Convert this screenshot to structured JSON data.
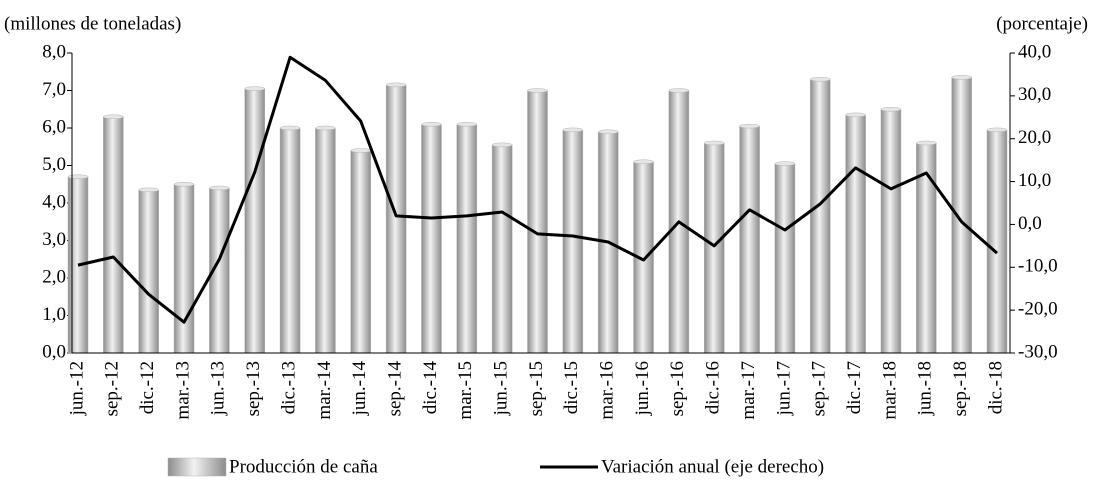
{
  "chart_data": {
    "type": "bar",
    "y_label": "(millones  de toneladas)",
    "y2_label": "(porcentaje)",
    "categories": [
      "jun.-12",
      "sep.-12",
      "dic.-12",
      "mar.-13",
      "jun.-13",
      "sep.-13",
      "dic.-13",
      "mar.-14",
      "jun.-14",
      "sep.-14",
      "dic.-14",
      "mar.-15",
      "jun.-15",
      "sep.-15",
      "dic.-15",
      "mar.-16",
      "jun.-16",
      "sep.-16",
      "dic.-16",
      "mar.-17",
      "jun.-17",
      "sep.-17",
      "dic.-17",
      "mar.-18",
      "jun.-18",
      "sep.-18",
      "dic.-18"
    ],
    "series": [
      {
        "name": "Producción de caña",
        "type": "bar",
        "color": "#b4b4b4",
        "values": [
          4.7,
          6.3,
          4.35,
          4.5,
          4.4,
          7.05,
          6.0,
          6.0,
          5.4,
          7.15,
          6.1,
          6.1,
          5.55,
          7.0,
          5.95,
          5.9,
          5.1,
          7.0,
          5.6,
          6.05,
          5.05,
          7.3,
          6.35,
          6.5,
          5.6,
          7.35,
          5.95
        ]
      },
      {
        "name": "Variación anual (eje derecho)",
        "type": "line",
        "color": "#000000",
        "axis": "y2",
        "values": [
          -9.5,
          -7.6,
          -16.3,
          -22.8,
          -8.1,
          12.2,
          39.0,
          33.6,
          24.1,
          2.0,
          1.5,
          2.0,
          2.9,
          -2.2,
          -2.7,
          -4.1,
          -8.3,
          0.6,
          -5.0,
          3.4,
          -1.3,
          4.8,
          13.2,
          8.3,
          12.0,
          0.6,
          -6.7
        ]
      }
    ],
    "ylim": [
      0,
      8
    ],
    "yticks": [
      {
        "value": 0,
        "label": "0,0"
      },
      {
        "value": 1,
        "label": "1,0"
      },
      {
        "value": 2,
        "label": "2,0"
      },
      {
        "value": 3,
        "label": "3,0"
      },
      {
        "value": 4,
        "label": "4,0"
      },
      {
        "value": 5,
        "label": "5,0"
      },
      {
        "value": 6,
        "label": "6,0"
      },
      {
        "value": 7,
        "label": "7,0"
      },
      {
        "value": 8,
        "label": "8,0"
      }
    ],
    "y2lim": [
      -30,
      40
    ],
    "y2ticks": [
      {
        "value": -30,
        "label": "-30,0"
      },
      {
        "value": -20,
        "label": "-20,0"
      },
      {
        "value": -10,
        "label": "-10,0"
      },
      {
        "value": 0,
        "label": "0,0"
      },
      {
        "value": 10,
        "label": "10,0"
      },
      {
        "value": 20,
        "label": "20,0"
      },
      {
        "value": 30,
        "label": "30,0"
      },
      {
        "value": 40,
        "label": "40,0"
      }
    ]
  }
}
